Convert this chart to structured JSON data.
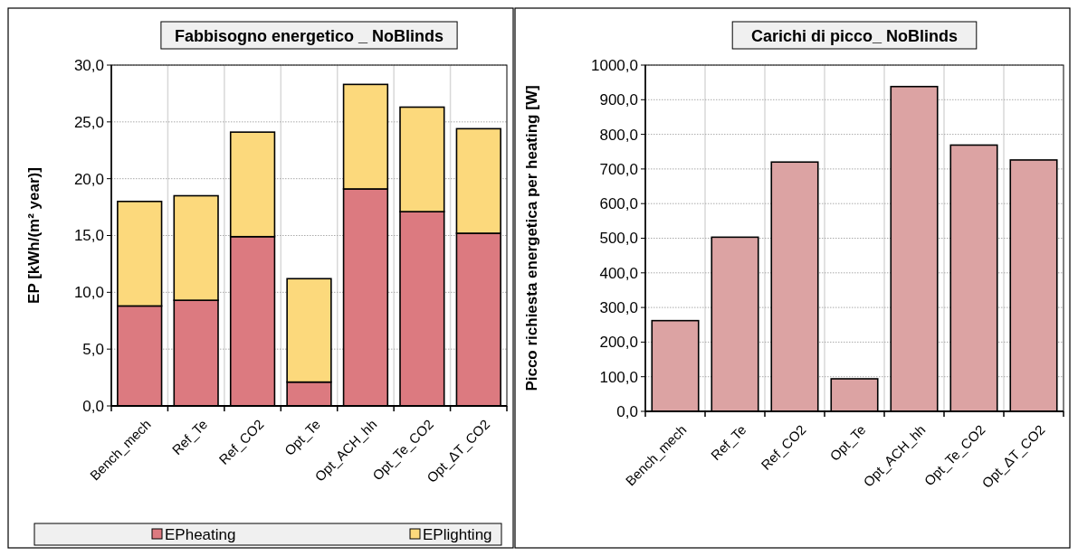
{
  "chart_data": [
    {
      "type": "bar",
      "title": "Fabbisogno energetico _ NoBlinds",
      "ylabel": "EP [kWh/(m² year)]",
      "categories": [
        "Bench_mech",
        "Ref_Te",
        "Ref_CO2",
        "Opt_Te",
        "Opt_ACH_hh",
        "Opt_Te_CO2",
        "Opt_ΔT_CO2"
      ],
      "stacked": true,
      "series": [
        {
          "name": "EPheating",
          "color": "#dc7a80",
          "values": [
            8.8,
            9.3,
            14.9,
            2.1,
            19.1,
            17.1,
            15.2
          ]
        },
        {
          "name": "EPlighting",
          "color": "#fcd97c",
          "values": [
            9.2,
            9.2,
            9.2,
            9.1,
            9.2,
            9.2,
            9.2
          ]
        }
      ],
      "ylim": [
        0,
        30
      ],
      "yticks": [
        {
          "value": 0,
          "label": "0,0"
        },
        {
          "value": 5,
          "label": "5,0"
        },
        {
          "value": 10,
          "label": "10,0"
        },
        {
          "value": 15,
          "label": "15,0"
        },
        {
          "value": 20,
          "label": "20,0"
        },
        {
          "value": 25,
          "label": "25,0"
        },
        {
          "value": 30,
          "label": "30,0"
        }
      ],
      "grid": true,
      "legend": "bottom"
    },
    {
      "type": "bar",
      "title": "Carichi di picco_ NoBlinds",
      "ylabel": "Picco richiesta energetica per heating [W]",
      "categories": [
        "Bench_mech",
        "Ref_Te",
        "Ref_CO2",
        "Opt_Te",
        "Opt_ACH_hh",
        "Opt_Te_CO2",
        "Opt_ΔT_CO2"
      ],
      "series": [
        {
          "color": "#dca3a3",
          "values": [
            262,
            503,
            720,
            94,
            938,
            769,
            726
          ]
        }
      ],
      "ylim": [
        0,
        1000
      ],
      "yticks": [
        {
          "value": 0,
          "label": "0,0"
        },
        {
          "value": 100,
          "label": "100,0"
        },
        {
          "value": 200,
          "label": "200,0"
        },
        {
          "value": 300,
          "label": "300,0"
        },
        {
          "value": 400,
          "label": "400,0"
        },
        {
          "value": 500,
          "label": "500,0"
        },
        {
          "value": 600,
          "label": "600,0"
        },
        {
          "value": 700,
          "label": "700,0"
        },
        {
          "value": 800,
          "label": "800,0"
        },
        {
          "value": 900,
          "label": "900,0"
        },
        {
          "value": 1000,
          "label": "1000,0"
        }
      ],
      "grid": true
    }
  ]
}
